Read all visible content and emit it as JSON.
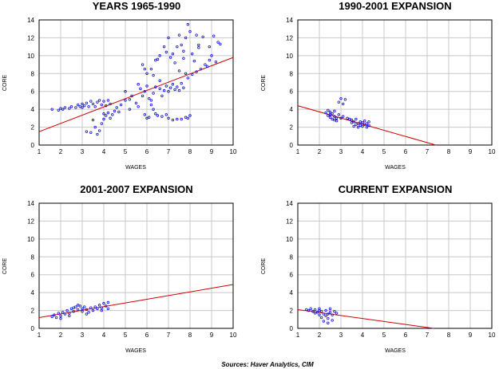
{
  "source_note": "Sources:  Haver Analytics, CIM",
  "colors": {
    "points": "#1010d0",
    "fit_line": "#d00000",
    "grid": "#c8c8c8",
    "background": "#ffffff"
  },
  "chart_data": [
    {
      "type": "scatter",
      "title": "YEARS 1965-1990",
      "xlabel": "WAGES",
      "ylabel": "CORE",
      "xlim": [
        1,
        10
      ],
      "ylim": [
        0,
        14
      ],
      "xticks": [
        "1",
        "2",
        "3",
        "4",
        "5",
        "6",
        "7",
        "8",
        "9",
        "10"
      ],
      "yticks": [
        "0",
        "2",
        "4",
        "6",
        "8",
        "10",
        "12",
        "14"
      ],
      "grid": true,
      "fit_line": {
        "x": [
          1,
          10
        ],
        "y": [
          1.5,
          9.8
        ]
      },
      "points": [
        [
          1.6,
          4.0
        ],
        [
          1.9,
          3.9
        ],
        [
          2.0,
          4.1
        ],
        [
          2.1,
          4.0
        ],
        [
          2.2,
          4.2
        ],
        [
          2.4,
          4.1
        ],
        [
          2.5,
          4.3
        ],
        [
          2.7,
          4.2
        ],
        [
          2.8,
          4.5
        ],
        [
          2.9,
          4.3
        ],
        [
          3.0,
          4.6
        ],
        [
          3.0,
          4.2
        ],
        [
          3.1,
          4.4
        ],
        [
          3.2,
          4.7
        ],
        [
          3.3,
          4.3
        ],
        [
          3.4,
          4.9
        ],
        [
          3.5,
          4.6
        ],
        [
          3.6,
          4.3
        ],
        [
          3.7,
          4.8
        ],
        [
          3.8,
          5.0
        ],
        [
          3.9,
          4.5
        ],
        [
          4.0,
          4.9
        ],
        [
          4.1,
          4.4
        ],
        [
          4.2,
          5.0
        ],
        [
          4.3,
          4.6
        ],
        [
          3.2,
          1.5
        ],
        [
          3.4,
          1.4
        ],
        [
          3.6,
          2.0
        ],
        [
          3.7,
          1.2
        ],
        [
          3.8,
          1.6
        ],
        [
          3.9,
          2.4
        ],
        [
          3.5,
          2.8
        ],
        [
          4.0,
          2.9
        ],
        [
          4.1,
          3.3
        ],
        [
          4.2,
          3.6
        ],
        [
          4.3,
          3.0
        ],
        [
          4.4,
          3.4
        ],
        [
          4.5,
          3.8
        ],
        [
          4.0,
          3.5
        ],
        [
          4.6,
          4.2
        ],
        [
          4.8,
          4.5
        ],
        [
          5.0,
          5.0
        ],
        [
          5.2,
          5.1
        ],
        [
          5.5,
          4.7
        ],
        [
          5.6,
          4.3
        ],
        [
          5.7,
          6.3
        ],
        [
          5.8,
          5.5
        ],
        [
          5.9,
          6.0
        ],
        [
          6.0,
          6.6
        ],
        [
          6.1,
          5.2
        ],
        [
          6.2,
          5.0
        ],
        [
          6.3,
          4.0
        ],
        [
          6.4,
          3.5
        ],
        [
          6.5,
          3.3
        ],
        [
          6.0,
          3.0
        ],
        [
          5.9,
          3.4
        ],
        [
          6.1,
          3.1
        ],
        [
          6.2,
          4.5
        ],
        [
          6.3,
          5.8
        ],
        [
          6.4,
          6.5
        ],
        [
          6.6,
          6.3
        ],
        [
          6.7,
          5.5
        ],
        [
          6.8,
          6.1
        ],
        [
          6.9,
          6.6
        ],
        [
          7.0,
          6.0
        ],
        [
          7.1,
          6.4
        ],
        [
          7.2,
          6.8
        ],
        [
          7.3,
          6.2
        ],
        [
          7.4,
          6.5
        ],
        [
          7.5,
          6.1
        ],
        [
          7.6,
          6.9
        ],
        [
          7.7,
          6.4
        ],
        [
          7.9,
          7.5
        ],
        [
          8.1,
          7.9
        ],
        [
          8.3,
          8.2
        ],
        [
          8.5,
          8.5
        ],
        [
          8.7,
          9.0
        ],
        [
          8.9,
          9.5
        ],
        [
          9.0,
          10.0
        ],
        [
          9.2,
          9.3
        ],
        [
          9.3,
          11.5
        ],
        [
          9.1,
          12.2
        ],
        [
          8.9,
          11.0
        ],
        [
          8.6,
          12.1
        ],
        [
          8.4,
          11.2
        ],
        [
          8.3,
          12.3
        ],
        [
          8.0,
          12.7
        ],
        [
          7.9,
          13.5
        ],
        [
          7.8,
          12.0
        ],
        [
          7.7,
          10.5
        ],
        [
          7.6,
          11.2
        ],
        [
          7.5,
          12.3
        ],
        [
          7.4,
          11.0
        ],
        [
          7.2,
          10.2
        ],
        [
          7.0,
          12.0
        ],
        [
          6.8,
          11.0
        ],
        [
          6.6,
          10.0
        ],
        [
          6.4,
          9.5
        ],
        [
          6.2,
          8.5
        ],
        [
          6.0,
          8.0
        ],
        [
          5.9,
          8.5
        ],
        [
          5.8,
          9.0
        ],
        [
          6.5,
          9.6
        ],
        [
          6.9,
          10.4
        ],
        [
          7.1,
          9.8
        ],
        [
          7.3,
          9.2
        ],
        [
          7.7,
          9.7
        ],
        [
          8.1,
          10.2
        ],
        [
          8.2,
          9.4
        ],
        [
          8.4,
          10.9
        ],
        [
          7.0,
          3.0
        ],
        [
          7.2,
          2.8
        ],
        [
          7.4,
          2.9
        ],
        [
          7.8,
          3.1
        ],
        [
          8.0,
          3.3
        ],
        [
          7.9,
          3.0
        ],
        [
          7.6,
          2.9
        ],
        [
          6.7,
          3.2
        ],
        [
          6.9,
          3.4
        ],
        [
          5.0,
          6.0
        ],
        [
          5.3,
          5.5
        ],
        [
          5.6,
          6.8
        ],
        [
          6.6,
          7.2
        ],
        [
          7.8,
          8.0
        ],
        [
          8.8,
          8.8
        ],
        [
          9.4,
          11.3
        ],
        [
          7.5,
          8.3
        ],
        [
          6.3,
          7.8
        ],
        [
          5.2,
          4.0
        ],
        [
          4.7,
          3.7
        ]
      ]
    },
    {
      "type": "scatter",
      "title": "1990-2001 EXPANSION",
      "xlabel": "WAGES",
      "ylabel": "CORE",
      "xlim": [
        1,
        10
      ],
      "ylim": [
        0,
        14
      ],
      "xticks": [
        "1",
        "2",
        "3",
        "4",
        "5",
        "6",
        "7",
        "8",
        "9",
        "10"
      ],
      "yticks": [
        "0",
        "2",
        "4",
        "6",
        "8",
        "10",
        "12",
        "14"
      ],
      "grid": true,
      "fit_line": {
        "x": [
          1,
          7.4
        ],
        "y": [
          4.4,
          0.0
        ]
      },
      "points": [
        [
          2.3,
          3.6
        ],
        [
          2.4,
          3.3
        ],
        [
          2.4,
          3.9
        ],
        [
          2.5,
          3.1
        ],
        [
          2.5,
          3.7
        ],
        [
          2.6,
          2.9
        ],
        [
          2.6,
          3.5
        ],
        [
          2.7,
          3.2
        ],
        [
          2.7,
          3.8
        ],
        [
          2.8,
          3.0
        ],
        [
          2.8,
          2.7
        ],
        [
          2.9,
          3.4
        ],
        [
          2.9,
          4.8
        ],
        [
          3.0,
          3.0
        ],
        [
          3.0,
          5.2
        ],
        [
          3.1,
          4.6
        ],
        [
          3.2,
          5.1
        ],
        [
          3.3,
          3.0
        ],
        [
          3.4,
          2.9
        ],
        [
          3.5,
          2.8
        ],
        [
          3.6,
          2.6
        ],
        [
          3.6,
          2.1
        ],
        [
          3.7,
          2.3
        ],
        [
          3.7,
          2.9
        ],
        [
          3.8,
          2.4
        ],
        [
          3.8,
          2.0
        ],
        [
          3.9,
          2.6
        ],
        [
          3.9,
          2.2
        ],
        [
          4.0,
          2.5
        ],
        [
          4.0,
          2.1
        ],
        [
          4.1,
          2.7
        ],
        [
          4.1,
          2.3
        ],
        [
          4.2,
          2.4
        ],
        [
          4.2,
          2.0
        ],
        [
          4.3,
          2.6
        ],
        [
          4.3,
          2.2
        ],
        [
          2.5,
          3.4
        ],
        [
          2.7,
          2.8
        ],
        [
          3.1,
          3.2
        ],
        [
          3.5,
          2.5
        ]
      ]
    },
    {
      "type": "scatter",
      "title": "2001-2007 EXPANSION",
      "xlabel": "WAGES",
      "ylabel": "CORE",
      "xlim": [
        1,
        10
      ],
      "ylim": [
        0,
        14
      ],
      "xticks": [
        "1",
        "2",
        "3",
        "4",
        "5",
        "6",
        "7",
        "8",
        "9",
        "10"
      ],
      "yticks": [
        "0",
        "2",
        "4",
        "6",
        "8",
        "10",
        "12",
        "14"
      ],
      "grid": true,
      "fit_line": {
        "x": [
          1,
          10
        ],
        "y": [
          1.2,
          4.9
        ]
      },
      "points": [
        [
          1.6,
          1.3
        ],
        [
          1.7,
          1.5
        ],
        [
          1.8,
          1.2
        ],
        [
          1.9,
          1.7
        ],
        [
          2.0,
          1.4
        ],
        [
          2.1,
          1.8
        ],
        [
          2.2,
          1.6
        ],
        [
          2.3,
          2.0
        ],
        [
          2.4,
          1.7
        ],
        [
          2.5,
          2.2
        ],
        [
          2.6,
          1.9
        ],
        [
          2.7,
          2.4
        ],
        [
          2.8,
          2.1
        ],
        [
          2.9,
          2.5
        ],
        [
          3.0,
          2.2
        ],
        [
          3.0,
          1.9
        ],
        [
          3.1,
          2.4
        ],
        [
          3.2,
          2.1
        ],
        [
          3.3,
          1.8
        ],
        [
          3.4,
          2.3
        ],
        [
          3.5,
          2.0
        ],
        [
          3.6,
          2.4
        ],
        [
          3.7,
          2.2
        ],
        [
          3.8,
          2.6
        ],
        [
          3.9,
          2.3
        ],
        [
          4.0,
          2.8
        ],
        [
          4.1,
          2.5
        ],
        [
          4.2,
          2.9
        ],
        [
          4.2,
          2.2
        ],
        [
          2.8,
          2.6
        ],
        [
          2.6,
          2.3
        ],
        [
          3.2,
          1.6
        ],
        [
          2.0,
          1.1
        ],
        [
          2.4,
          1.4
        ],
        [
          3.9,
          2.0
        ]
      ]
    },
    {
      "type": "scatter",
      "title": "CURRENT EXPANSION",
      "xlabel": "WAGES",
      "ylabel": "CORE",
      "xlim": [
        1,
        10
      ],
      "ylim": [
        0,
        14
      ],
      "xticks": [
        "1",
        "2",
        "3",
        "4",
        "5",
        "6",
        "7",
        "8",
        "9",
        "10"
      ],
      "yticks": [
        "0",
        "2",
        "4",
        "6",
        "8",
        "10",
        "12",
        "14"
      ],
      "grid": true,
      "fit_line": {
        "x": [
          1,
          7.3
        ],
        "y": [
          2.1,
          0.0
        ]
      },
      "points": [
        [
          1.4,
          2.1
        ],
        [
          1.5,
          2.0
        ],
        [
          1.6,
          2.2
        ],
        [
          1.7,
          1.9
        ],
        [
          1.8,
          2.1
        ],
        [
          1.9,
          1.8
        ],
        [
          2.0,
          2.2
        ],
        [
          2.0,
          1.5
        ],
        [
          2.1,
          1.9
        ],
        [
          2.1,
          1.2
        ],
        [
          2.2,
          1.6
        ],
        [
          2.2,
          0.8
        ],
        [
          2.3,
          1.4
        ],
        [
          2.3,
          2.0
        ],
        [
          2.4,
          1.1
        ],
        [
          2.4,
          0.6
        ],
        [
          2.5,
          1.8
        ],
        [
          2.5,
          2.2
        ],
        [
          2.6,
          1.5
        ],
        [
          2.6,
          0.9
        ],
        [
          2.7,
          1.9
        ],
        [
          1.8,
          1.7
        ],
        [
          2.0,
          2.0
        ],
        [
          2.4,
          1.6
        ],
        [
          2.8,
          1.7
        ]
      ]
    }
  ]
}
